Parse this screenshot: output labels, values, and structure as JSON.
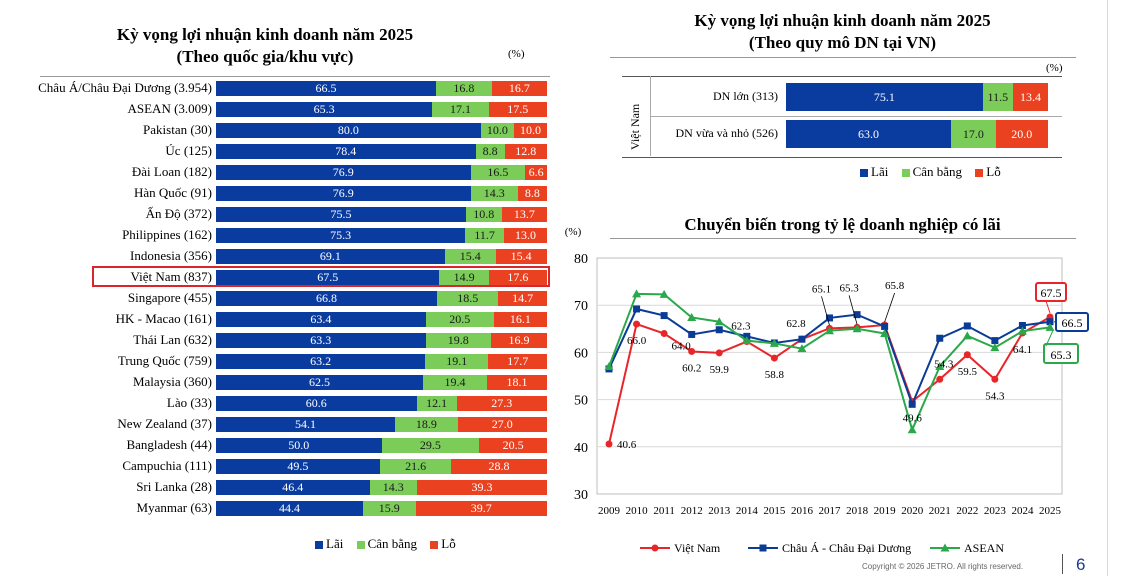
{
  "chart_data": [
    {
      "type": "bar",
      "stacked": true,
      "orientation": "horizontal",
      "title": "Kỳ vọng lợi nhuận kinh doanh năm 2025",
      "subtitle": "(Theo quốc gia/khu vực)",
      "unit": "(%)",
      "categories": [
        "Châu Á/Châu Đại Dương (3.954)",
        "ASEAN (3.009)",
        "Pakistan (30)",
        "Úc (125)",
        "Đài Loan (182)",
        "Hàn Quốc (91)",
        "Ấn Độ (372)",
        "Philippines (162)",
        "Indonesia (356)",
        "Việt Nam (837)",
        "Singapore (455)",
        "HK - Macao (161)",
        "Thái Lan (632)",
        "Trung Quốc (759)",
        "Malaysia (360)",
        "Lào (33)",
        "New Zealand (37)",
        "Bangladesh (44)",
        "Campuchia (111)",
        "Sri Lanka (28)",
        "Myanmar (63)"
      ],
      "highlight": "Việt Nam (837)",
      "series": [
        {
          "name": "Lãi",
          "color": "#0a3ca0",
          "values": [
            66.5,
            65.3,
            80.0,
            78.4,
            76.9,
            76.9,
            75.5,
            75.3,
            69.1,
            67.5,
            66.8,
            63.4,
            63.3,
            63.2,
            62.5,
            60.6,
            54.1,
            50.0,
            49.5,
            46.4,
            44.4
          ]
        },
        {
          "name": "Cân bằng",
          "color": "#7ccc5a",
          "values": [
            16.8,
            17.1,
            10.0,
            8.8,
            16.5,
            14.3,
            10.8,
            11.7,
            15.4,
            14.9,
            18.5,
            20.5,
            19.8,
            19.1,
            19.4,
            12.1,
            18.9,
            29.5,
            21.6,
            14.3,
            15.9
          ]
        },
        {
          "name": "Lỗ",
          "color": "#ea4220",
          "values": [
            16.7,
            17.5,
            10.0,
            12.8,
            6.6,
            8.8,
            13.7,
            13.0,
            15.4,
            17.6,
            14.7,
            16.1,
            16.9,
            17.7,
            18.1,
            27.3,
            27.0,
            20.5,
            28.8,
            39.3,
            39.7
          ]
        }
      ]
    },
    {
      "type": "bar",
      "stacked": true,
      "orientation": "horizontal",
      "title": "Kỳ vọng lợi nhuận kinh doanh năm 2025",
      "subtitle": "(Theo quy mô DN tại VN)",
      "unit": "(%)",
      "group_label": "Việt Nam",
      "categories": [
        "DN lớn (313)",
        "DN vừa và nhỏ (526)"
      ],
      "series": [
        {
          "name": "Lãi",
          "color": "#0a3ca0",
          "values": [
            75.1,
            63.0
          ]
        },
        {
          "name": "Cân bằng",
          "color": "#7ccc5a",
          "values": [
            11.5,
            17.0
          ]
        },
        {
          "name": "Lỗ",
          "color": "#ea4220",
          "values": [
            13.4,
            20.0
          ]
        }
      ]
    },
    {
      "type": "line",
      "title": "Chuyển biến trong tỷ lệ doanh nghiệp có lãi",
      "unit": "(%)",
      "x": [
        2009,
        2010,
        2011,
        2012,
        2013,
        2014,
        2015,
        2016,
        2017,
        2018,
        2019,
        2020,
        2021,
        2022,
        2023,
        2024,
        2025
      ],
      "ylim": [
        30,
        80
      ],
      "yticks": [
        30,
        40,
        50,
        60,
        70,
        80
      ],
      "series": [
        {
          "name": "Việt Nam",
          "color": "#e8262a",
          "marker": "circle",
          "values": [
            40.6,
            66.0,
            64.0,
            60.2,
            59.9,
            62.3,
            58.8,
            62.8,
            65.1,
            65.3,
            65.8,
            49.6,
            54.3,
            59.5,
            54.3,
            64.1,
            67.5
          ]
        },
        {
          "name": "Châu Á - Châu Đại Dương",
          "color": "#0a3c96",
          "marker": "square",
          "values": [
            56.5,
            69.2,
            67.8,
            63.8,
            64.8,
            63.4,
            62.0,
            62.8,
            67.3,
            68.0,
            65.5,
            49.0,
            63.0,
            65.6,
            62.5,
            65.7,
            66.5
          ]
        },
        {
          "name": "ASEAN",
          "color": "#2aa84a",
          "marker": "triangle",
          "values": [
            57.0,
            72.4,
            72.3,
            67.4,
            66.5,
            62.5,
            61.9,
            60.8,
            64.6,
            65.0,
            64.0,
            43.6,
            57.0,
            63.5,
            61.0,
            64.5,
            65.3
          ]
        }
      ],
      "data_labels": [
        {
          "text": "40.6",
          "year": 2009,
          "series": "Việt Nam",
          "pos": "right"
        },
        {
          "text": "66.0",
          "year": 2010,
          "series": "Việt Nam",
          "pos": "below"
        },
        {
          "text": "64.0",
          "year": 2011,
          "series": "Việt Nam",
          "pos": "below-right"
        },
        {
          "text": "60.2",
          "year": 2012,
          "series": "Việt Nam",
          "pos": "below"
        },
        {
          "text": "59.9",
          "year": 2013,
          "series": "Việt Nam",
          "pos": "below"
        },
        {
          "text": "62.3",
          "year": 2014,
          "series": "Việt Nam",
          "pos": "above-left"
        },
        {
          "text": "58.8",
          "year": 2015,
          "series": "Việt Nam",
          "pos": "below"
        },
        {
          "text": "62.8",
          "year": 2016,
          "series": "Việt Nam",
          "pos": "above-left"
        },
        {
          "text": "65.1",
          "year": 2017,
          "series": "Việt Nam",
          "pos": "leader-up"
        },
        {
          "text": "65.3",
          "year": 2018,
          "series": "Việt Nam",
          "pos": "leader-up"
        },
        {
          "text": "65.8",
          "year": 2019,
          "series": "Việt Nam",
          "pos": "leader-up-right"
        },
        {
          "text": "49.6",
          "year": 2020,
          "series": "Việt Nam",
          "pos": "below"
        },
        {
          "text": "54.3",
          "year": 2021,
          "series": "Việt Nam",
          "pos": "above"
        },
        {
          "text": "59.5",
          "year": 2022,
          "series": "Việt Nam",
          "pos": "below"
        },
        {
          "text": "54.3",
          "year": 2023,
          "series": "Việt Nam",
          "pos": "below"
        },
        {
          "text": "64.1",
          "year": 2024,
          "series": "Việt Nam",
          "pos": "below"
        }
      ],
      "callouts": [
        {
          "text": "67.5",
          "series": "Việt Nam",
          "color": "#e8262a"
        },
        {
          "text": "66.5",
          "series": "Châu Á - Châu Đại Dương",
          "color": "#0a3c96"
        },
        {
          "text": "65.3",
          "series": "ASEAN",
          "color": "#2aa84a"
        }
      ]
    }
  ],
  "legend_labels": {
    "lai": "Lãi",
    "can_bang": "Cân bằng",
    "lo": "Lỗ"
  },
  "footer": {
    "copyright": "Copyright © 2026 JETRO. All rights reserved.",
    "page": "6"
  }
}
